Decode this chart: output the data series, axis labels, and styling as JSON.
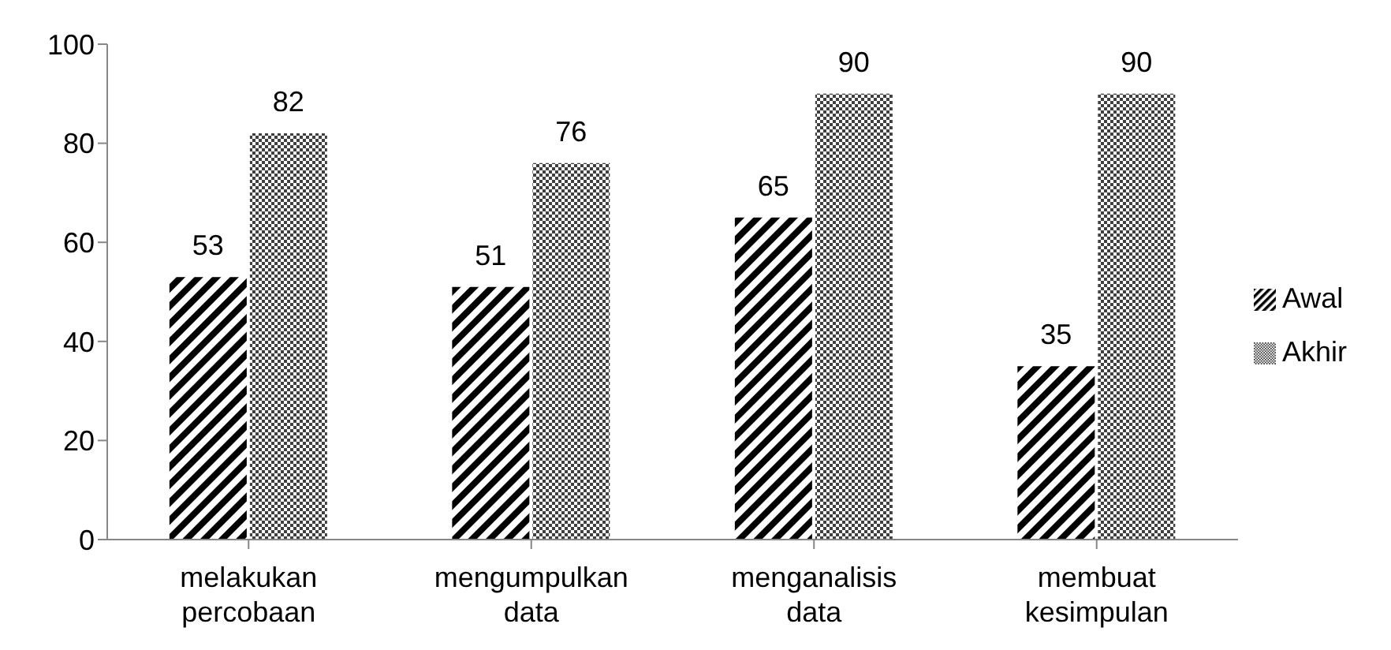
{
  "chart_data": {
    "type": "bar",
    "categories": [
      "melakukan percobaan",
      "mengumpulkan data",
      "menganalisis data",
      "membuat kesimpulan"
    ],
    "series": [
      {
        "name": "Awal",
        "color": "#000000",
        "values": [
          53,
          51,
          65,
          35
        ]
      },
      {
        "name": "Akhir",
        "color": "#404040",
        "values": [
          82,
          76,
          90,
          90
        ]
      }
    ],
    "ylim": [
      0,
      100
    ],
    "yticks": [
      0,
      20,
      40,
      60,
      80,
      100
    ],
    "data_labels": true,
    "legend": "right",
    "grid": false
  }
}
